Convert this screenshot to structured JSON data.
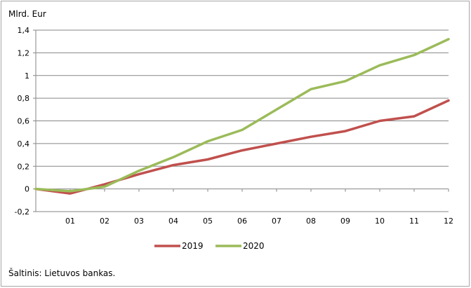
{
  "chart_data": {
    "type": "line",
    "unit_label": "Mlrd. Eur",
    "categories": [
      "",
      "01",
      "02",
      "03",
      "04",
      "05",
      "06",
      "07",
      "08",
      "09",
      "10",
      "11",
      "12"
    ],
    "ylim": [
      -0.2,
      1.4
    ],
    "y_ticks": [
      "-0,2",
      "0",
      "0,2",
      "0,4",
      "0,6",
      "0,8",
      "1",
      "1,2",
      "1,4"
    ],
    "grid": true,
    "legend_position": "bottom-center",
    "series": [
      {
        "name": "2019",
        "color": "#c0504d",
        "values": [
          0,
          -0.04,
          0.04,
          0.13,
          0.21,
          0.26,
          0.34,
          0.4,
          0.46,
          0.51,
          0.6,
          0.64,
          0.78
        ]
      },
      {
        "name": "2020",
        "color": "#9bbb59",
        "values": [
          0,
          -0.02,
          0.02,
          0.16,
          0.28,
          0.42,
          0.52,
          0.7,
          0.88,
          0.95,
          1.09,
          1.18,
          1.32
        ]
      }
    ]
  },
  "source_text": "Šaltinis: Lietuvos bankas."
}
